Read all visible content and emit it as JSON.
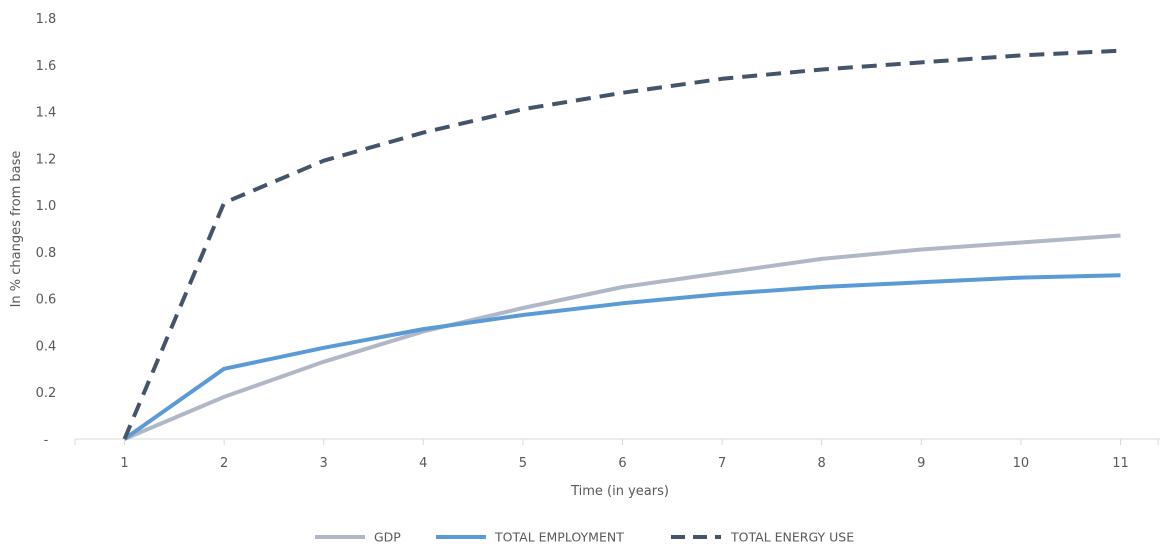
{
  "chart_data": {
    "type": "line",
    "title": "",
    "xlabel": "Time (in years)",
    "ylabel": "In % changes from base",
    "x": [
      1,
      2,
      3,
      4,
      5,
      6,
      7,
      8,
      9,
      10,
      11
    ],
    "x_tick_labels": [
      "1",
      "2",
      "3",
      "4",
      "5",
      "6",
      "7",
      "8",
      "9",
      "10",
      "11"
    ],
    "y_tick_labels": [
      "-",
      "0.2",
      "0.4",
      "0.6",
      "0.8",
      "1.0",
      "1.2",
      "1.4",
      "1.6",
      "1.8"
    ],
    "ylim": [
      0,
      1.8
    ],
    "grid": false,
    "legend_position": "bottom",
    "series": [
      {
        "name": "GDP",
        "color": "#b0b7c6",
        "style": "solid",
        "values": [
          0,
          0.18,
          0.33,
          0.46,
          0.56,
          0.65,
          0.71,
          0.77,
          0.81,
          0.84,
          0.87
        ]
      },
      {
        "name": "TOTAL EMPLOYMENT",
        "color": "#5b9bd5",
        "style": "solid",
        "values": [
          0,
          0.3,
          0.39,
          0.47,
          0.53,
          0.58,
          0.62,
          0.65,
          0.67,
          0.69,
          0.7
        ]
      },
      {
        "name": "TOTAL ENERGY USE",
        "color": "#44546a",
        "style": "dashed",
        "values": [
          0,
          1.01,
          1.19,
          1.31,
          1.41,
          1.48,
          1.54,
          1.58,
          1.61,
          1.64,
          1.66
        ]
      }
    ]
  }
}
